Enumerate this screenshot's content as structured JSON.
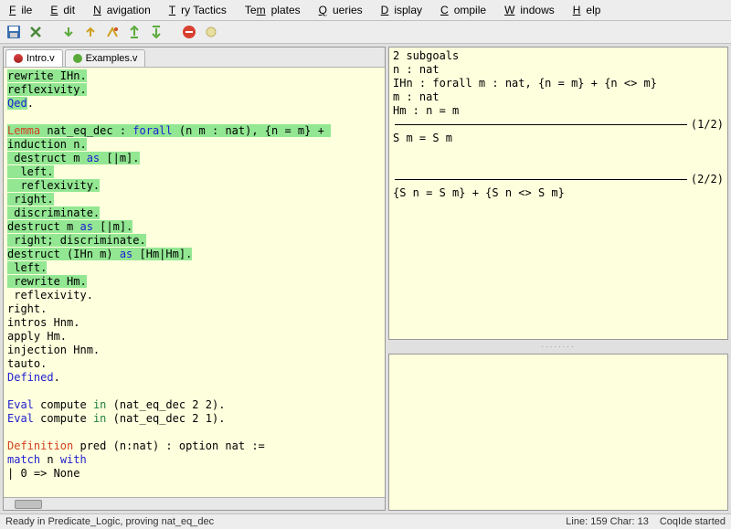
{
  "menu": {
    "file": "File",
    "edit": "Edit",
    "navigation": "Navigation",
    "try_tactics": "Try Tactics",
    "templates": "Templates",
    "queries": "Queries",
    "display": "Display",
    "compile": "Compile",
    "windows": "Windows",
    "help": "Help"
  },
  "tabs": {
    "intro": "Intro.v",
    "examples": "Examples.v"
  },
  "editor_lines": [
    {
      "segs": [
        {
          "t": "rewrite IHn.",
          "hl": true
        }
      ]
    },
    {
      "segs": [
        {
          "t": "reflexivity.",
          "hl": true
        }
      ]
    },
    {
      "segs": [
        {
          "t": "Qed",
          "cls": "kw-blue",
          "hl": true
        },
        {
          "t": ".",
          "hl": false
        }
      ]
    },
    {
      "segs": []
    },
    {
      "segs": [
        {
          "t": "Lemma",
          "cls": "kw-red",
          "hl": true
        },
        {
          "t": " nat_eq_dec : ",
          "hl": true
        },
        {
          "t": "forall",
          "cls": "kw-blue",
          "hl": true
        },
        {
          "t": " (n m : nat), {n = m} + ",
          "hl": true
        }
      ]
    },
    {
      "segs": [
        {
          "t": "induction n.",
          "hl": true
        }
      ]
    },
    {
      "segs": [
        {
          "t": " destruct m ",
          "hl": true
        },
        {
          "t": "as",
          "cls": "kw-blue",
          "hl": true
        },
        {
          "t": " [|m].",
          "hl": true
        }
      ]
    },
    {
      "segs": [
        {
          "t": "  left.",
          "hl": true
        }
      ]
    },
    {
      "segs": [
        {
          "t": "  reflexivity.",
          "hl": true
        }
      ]
    },
    {
      "segs": [
        {
          "t": " right.",
          "hl": true
        }
      ]
    },
    {
      "segs": [
        {
          "t": " discriminate.",
          "hl": true
        }
      ]
    },
    {
      "segs": [
        {
          "t": "destruct m ",
          "hl": true
        },
        {
          "t": "as",
          "cls": "kw-blue",
          "hl": true
        },
        {
          "t": " [|m].",
          "hl": true
        }
      ]
    },
    {
      "segs": [
        {
          "t": " right; discriminate.",
          "hl": true
        }
      ]
    },
    {
      "segs": [
        {
          "t": "destruct (IHn m) ",
          "hl": true
        },
        {
          "t": "as",
          "cls": "kw-blue",
          "hl": true
        },
        {
          "t": " [Hm|Hm].",
          "hl": true
        }
      ]
    },
    {
      "segs": [
        {
          "t": " left.",
          "hl": true
        }
      ]
    },
    {
      "segs": [
        {
          "t": " rewrite Hm.",
          "hl": true
        }
      ]
    },
    {
      "segs": [
        {
          "t": " reflexivity."
        }
      ]
    },
    {
      "segs": [
        {
          "t": "right."
        }
      ]
    },
    {
      "segs": [
        {
          "t": "intros Hnm."
        }
      ]
    },
    {
      "segs": [
        {
          "t": "apply Hm."
        }
      ]
    },
    {
      "segs": [
        {
          "t": "injection Hnm."
        }
      ]
    },
    {
      "segs": [
        {
          "t": "tauto."
        }
      ]
    },
    {
      "segs": [
        {
          "t": "Defined",
          "cls": "kw-blue"
        },
        {
          "t": "."
        }
      ]
    },
    {
      "segs": []
    },
    {
      "segs": [
        {
          "t": "Eval",
          "cls": "kw-blue"
        },
        {
          "t": " compute "
        },
        {
          "t": "in",
          "cls": "kw-green"
        },
        {
          "t": " (nat_eq_dec 2 2)."
        }
      ]
    },
    {
      "segs": [
        {
          "t": "Eval",
          "cls": "kw-blue"
        },
        {
          "t": " compute "
        },
        {
          "t": "in",
          "cls": "kw-green"
        },
        {
          "t": " (nat_eq_dec 2 1)."
        }
      ]
    },
    {
      "segs": []
    },
    {
      "segs": [
        {
          "t": "Definition",
          "cls": "kw-red"
        },
        {
          "t": " pred (n:nat) : option nat :="
        }
      ]
    },
    {
      "segs": [
        {
          "t": "match",
          "cls": "kw-blue"
        },
        {
          "t": " n "
        },
        {
          "t": "with",
          "cls": "kw-blue"
        }
      ]
    },
    {
      "segs": [
        {
          "t": "| 0 => None"
        }
      ]
    }
  ],
  "goals": {
    "header": "2 subgoals",
    "ctx": [
      "n : nat",
      "IHn : forall m : nat, {n = m} + {n <> m}",
      "m : nat",
      "Hm : n = m"
    ],
    "rule1_label": "(1/2)",
    "goal1": "S m = S m",
    "rule2_label": "(2/2)",
    "goal2": "{S n = S m} + {S n <> S m}"
  },
  "status": {
    "left": "Ready in Predicate_Logic, proving nat_eq_dec",
    "line_label": "Line:",
    "line": "159",
    "char_label": "Char:",
    "char": "13",
    "right": "CoqIde started"
  },
  "colors": {
    "editor_bg": "#feffdd",
    "highlight": "#93e793"
  }
}
